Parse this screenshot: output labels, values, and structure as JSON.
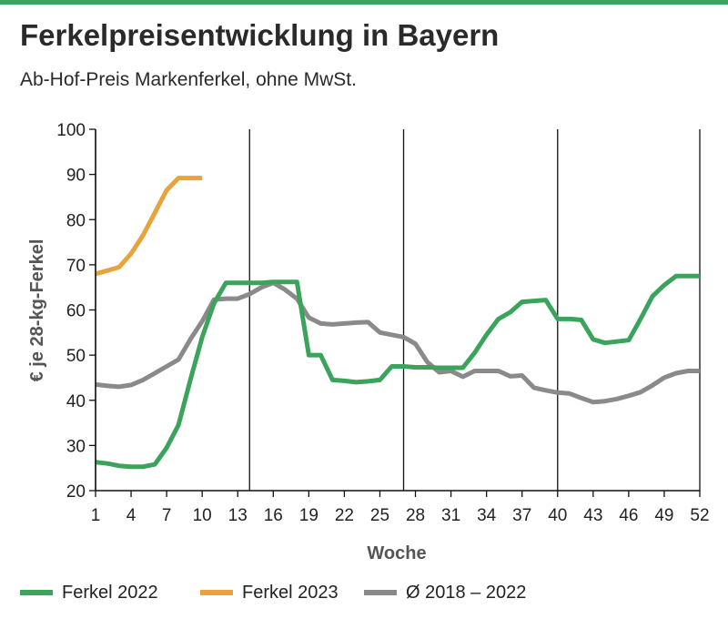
{
  "header": {
    "title": "Ferkelpreisentwicklung in Bayern",
    "subtitle": "Ab-Hof-Preis Markenferkel, ohne MwSt."
  },
  "colors": {
    "accent": "#3aa35c",
    "series_2022": "#3aa35c",
    "series_2023": "#e8a33a",
    "series_avg": "#8a8a8a",
    "grid": "#111111"
  },
  "chart_data": {
    "type": "line",
    "title": "Ferkelpreisentwicklung in Bayern",
    "subtitle": "Ab-Hof-Preis Markenferkel, ohne MwSt.",
    "xlabel": "Woche",
    "ylabel": "€ je 28-kg-Ferkel",
    "xlim": [
      1,
      52
    ],
    "ylim": [
      20,
      100
    ],
    "xticks": [
      1,
      4,
      7,
      10,
      13,
      16,
      19,
      22,
      25,
      28,
      31,
      34,
      37,
      40,
      43,
      46,
      49,
      52
    ],
    "yticks": [
      20,
      30,
      40,
      50,
      60,
      70,
      80,
      90,
      100
    ],
    "grid": "vertical lines at weeks 1, 14, 27, 40, 52",
    "legend_position": "bottom",
    "series": [
      {
        "name": "Ferkel 2022",
        "color": "#3aa35c",
        "x": [
          1,
          2,
          3,
          4,
          5,
          6,
          7,
          8,
          9,
          10,
          11,
          12,
          13,
          14,
          15,
          16,
          17,
          18,
          19,
          20,
          21,
          22,
          23,
          24,
          25,
          26,
          27,
          28,
          29,
          30,
          31,
          32,
          33,
          34,
          35,
          36,
          37,
          38,
          39,
          40,
          41,
          42,
          43,
          44,
          45,
          46,
          47,
          48,
          49,
          50,
          51,
          52
        ],
        "values": [
          26.3,
          26,
          25.5,
          25.3,
          25.3,
          25.8,
          29.5,
          34.5,
          44.5,
          54,
          61.5,
          66,
          66,
          66,
          66,
          66.2,
          66.2,
          66.2,
          50,
          50,
          44.5,
          44.3,
          44,
          44.2,
          44.5,
          47.5,
          47.5,
          47.3,
          47.3,
          47.2,
          47.2,
          47.2,
          50.5,
          54.5,
          58,
          59.5,
          61.8,
          62,
          62.2,
          58,
          58,
          57.8,
          53.5,
          52.7,
          53,
          53.3,
          58,
          63,
          65.5,
          67.5,
          67.5,
          67.5
        ]
      },
      {
        "name": "Ferkel 2023",
        "color": "#e8a33a",
        "x": [
          1,
          2,
          3,
          4,
          5,
          6,
          7,
          8,
          9,
          10
        ],
        "values": [
          68,
          68.7,
          69.5,
          72.5,
          76.5,
          81.5,
          86.5,
          89.2,
          89.2,
          89.2
        ]
      },
      {
        "name": "Ø 2018 – 2022",
        "color": "#8a8a8a",
        "x": [
          1,
          2,
          3,
          4,
          5,
          6,
          7,
          8,
          9,
          10,
          11,
          12,
          13,
          14,
          15,
          16,
          17,
          18,
          19,
          20,
          21,
          22,
          23,
          24,
          25,
          26,
          27,
          28,
          29,
          30,
          31,
          32,
          33,
          34,
          35,
          36,
          37,
          38,
          39,
          40,
          41,
          42,
          43,
          44,
          45,
          46,
          47,
          48,
          49,
          50,
          51,
          52
        ],
        "values": [
          43.5,
          43.2,
          43,
          43.4,
          44.5,
          46,
          47.5,
          49,
          53.5,
          57.5,
          62.3,
          62.5,
          62.5,
          63.5,
          65,
          66,
          64.5,
          62.5,
          58.3,
          57,
          56.8,
          57,
          57.2,
          57.3,
          55,
          54.5,
          54,
          52.5,
          48.5,
          46.2,
          46.5,
          45.2,
          46.5,
          46.5,
          46.5,
          45.3,
          45.5,
          42.8,
          42.2,
          41.7,
          41.5,
          40.5,
          39.6,
          39.8,
          40.3,
          41,
          41.8,
          43.3,
          45,
          46,
          46.5,
          46.5
        ]
      }
    ]
  }
}
